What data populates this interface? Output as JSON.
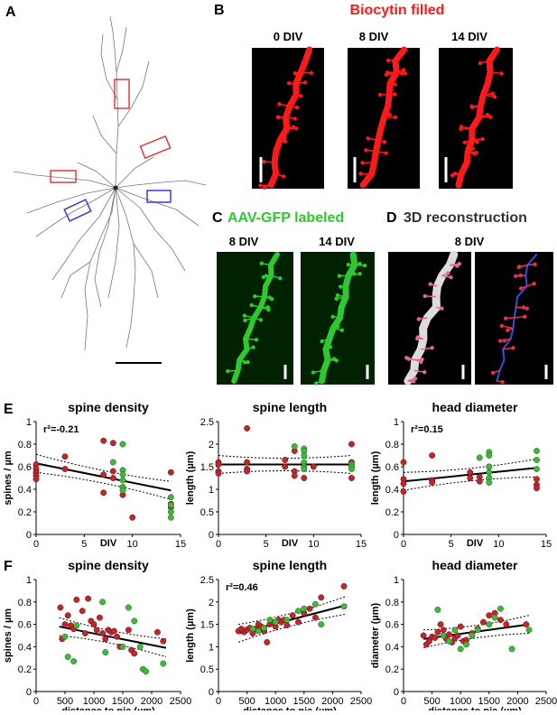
{
  "panels": {
    "A": {
      "letter": "A"
    },
    "B": {
      "letter": "B",
      "title": "Biocytin filled",
      "div_labels": [
        "0 DIV",
        "8 DIV",
        "14 DIV"
      ]
    },
    "C": {
      "letter": "C",
      "title": "AAV-GFP labeled",
      "div_labels": [
        "8 DIV",
        "14 DIV"
      ]
    },
    "D": {
      "letter": "D",
      "title": "3D reconstruction",
      "div_label": "8 DIV"
    },
    "E": {
      "letter": "E"
    },
    "F": {
      "letter": "F"
    }
  },
  "colors": {
    "red_data": "#c0272d",
    "green_data": "#3fb93c",
    "biocytin": "#ff1a1a",
    "gfp": "#2fc82f",
    "title_red": "#ff1a1a",
    "title_green": "#2fc82f"
  },
  "chart_data": [
    {
      "id": "E1",
      "type": "scatter",
      "title": "spine density",
      "xlabel": "DIV",
      "ylabel": "spines / µm",
      "annotation": "r²=-0.21",
      "xlim": [
        0,
        15
      ],
      "ylim": [
        0,
        1.0
      ],
      "xticks": [
        0,
        5,
        10,
        15
      ],
      "yticks": [
        0,
        0.2,
        0.4,
        0.6,
        0.8,
        1.0
      ],
      "fit": {
        "x": [
          0,
          14
        ],
        "y": [
          0.63,
          0.39
        ]
      },
      "red": [
        [
          0,
          0.62
        ],
        [
          0,
          0.58
        ],
        [
          0,
          0.55
        ],
        [
          0,
          0.52
        ],
        [
          0,
          0.49
        ],
        [
          3,
          0.69
        ],
        [
          3,
          0.58
        ],
        [
          7,
          0.83
        ],
        [
          7,
          0.53
        ],
        [
          7,
          0.37
        ],
        [
          8,
          0.81
        ],
        [
          8,
          0.56
        ],
        [
          8,
          0.5
        ],
        [
          9,
          0.35
        ],
        [
          10,
          0.15
        ],
        [
          14,
          0.55
        ],
        [
          14,
          0.27
        ],
        [
          14,
          0.24
        ]
      ],
      "green": [
        [
          8,
          0.64
        ],
        [
          9,
          0.8
        ],
        [
          9,
          0.57
        ],
        [
          9,
          0.53
        ],
        [
          9,
          0.48
        ],
        [
          9,
          0.42
        ],
        [
          9,
          0.39
        ],
        [
          14,
          0.33
        ],
        [
          14,
          0.26
        ],
        [
          14,
          0.2
        ],
        [
          14,
          0.15
        ]
      ]
    },
    {
      "id": "E2",
      "type": "scatter",
      "title": "spine length",
      "xlabel": "DIV",
      "ylabel": "length (µm)",
      "xlim": [
        0,
        15
      ],
      "ylim": [
        0,
        2.5
      ],
      "xticks": [
        0,
        5,
        10,
        15
      ],
      "yticks": [
        0,
        0.5,
        1.0,
        1.5,
        2.0,
        2.5
      ],
      "fit": {
        "x": [
          0,
          14
        ],
        "y": [
          1.55,
          1.55
        ]
      },
      "red": [
        [
          0,
          1.6
        ],
        [
          0,
          1.55
        ],
        [
          0,
          1.4
        ],
        [
          0,
          1.35
        ],
        [
          3,
          2.35
        ],
        [
          3,
          1.6
        ],
        [
          3,
          1.45
        ],
        [
          3,
          1.4
        ],
        [
          7,
          1.65
        ],
        [
          7,
          1.5
        ],
        [
          8,
          1.85
        ],
        [
          8,
          1.4
        ],
        [
          8,
          1.3
        ],
        [
          9,
          1.25
        ],
        [
          10,
          1.5
        ],
        [
          14,
          2.0
        ],
        [
          14,
          1.6
        ],
        [
          14,
          1.25
        ]
      ],
      "green": [
        [
          8,
          1.95
        ],
        [
          9,
          1.9
        ],
        [
          9,
          1.85
        ],
        [
          9,
          1.75
        ],
        [
          9,
          1.6
        ],
        [
          9,
          1.5
        ],
        [
          9,
          1.45
        ],
        [
          14,
          1.55
        ],
        [
          14,
          1.5
        ],
        [
          14,
          1.45
        ]
      ]
    },
    {
      "id": "E3",
      "type": "scatter",
      "title": "head diameter",
      "xlabel": "DIV",
      "ylabel": "length (µm)",
      "annotation": "r²=0.15",
      "xlim": [
        0,
        15
      ],
      "ylim": [
        0,
        1.0
      ],
      "xticks": [
        0,
        5,
        10,
        15
      ],
      "yticks": [
        0,
        0.2,
        0.4,
        0.6,
        0.8,
        1.0
      ],
      "fit": {
        "x": [
          0,
          14
        ],
        "y": [
          0.47,
          0.59
        ]
      },
      "red": [
        [
          0,
          0.64
        ],
        [
          0,
          0.49
        ],
        [
          0,
          0.45
        ],
        [
          0,
          0.38
        ],
        [
          3,
          0.7
        ],
        [
          3,
          0.48
        ],
        [
          3,
          0.46
        ],
        [
          7,
          0.55
        ],
        [
          7,
          0.5
        ],
        [
          8,
          0.51
        ],
        [
          8,
          0.47
        ],
        [
          9,
          0.6
        ],
        [
          14,
          0.49
        ],
        [
          14,
          0.44
        ],
        [
          14,
          0.41
        ]
      ],
      "green": [
        [
          8,
          0.68
        ],
        [
          9,
          0.73
        ],
        [
          9,
          0.7
        ],
        [
          9,
          0.6
        ],
        [
          9,
          0.55
        ],
        [
          9,
          0.5
        ],
        [
          9,
          0.46
        ],
        [
          14,
          0.74
        ],
        [
          14,
          0.66
        ],
        [
          14,
          0.58
        ]
      ]
    },
    {
      "id": "F1",
      "type": "scatter",
      "title": "spine density",
      "xlabel": "distance to pia (µm)",
      "ylabel": "spines / µm",
      "xlim": [
        0,
        2500
      ],
      "ylim": [
        0,
        1.0
      ],
      "xticks": [
        0,
        500,
        1000,
        1500,
        2000,
        2500
      ],
      "yticks": [
        0,
        0.2,
        0.4,
        0.6,
        0.8,
        1.0
      ],
      "fit": {
        "x": [
          400,
          2250
        ],
        "y": [
          0.58,
          0.39
        ]
      },
      "red": [
        [
          420,
          0.75
        ],
        [
          450,
          0.47
        ],
        [
          500,
          0.6
        ],
        [
          550,
          0.68
        ],
        [
          600,
          0.59
        ],
        [
          650,
          0.56
        ],
        [
          700,
          0.82
        ],
        [
          800,
          0.72
        ],
        [
          850,
          0.52
        ],
        [
          900,
          0.83
        ],
        [
          950,
          0.63
        ],
        [
          1000,
          0.6
        ],
        [
          1050,
          0.55
        ],
        [
          1100,
          0.66
        ],
        [
          1150,
          0.52
        ],
        [
          1200,
          0.47
        ],
        [
          1250,
          0.55
        ],
        [
          1300,
          0.53
        ],
        [
          1350,
          0.54
        ],
        [
          1400,
          0.49
        ],
        [
          1450,
          0.4
        ],
        [
          1600,
          0.55
        ],
        [
          1650,
          0.37
        ],
        [
          1700,
          0.34
        ],
        [
          2100,
          0.53
        ],
        [
          2200,
          0.45
        ]
      ],
      "green": [
        [
          500,
          0.49
        ],
        [
          550,
          0.31
        ],
        [
          650,
          0.27
        ],
        [
          700,
          0.59
        ],
        [
          1150,
          0.8
        ],
        [
          1200,
          0.35
        ],
        [
          1500,
          0.4
        ],
        [
          1600,
          0.75
        ],
        [
          1700,
          0.63
        ],
        [
          1800,
          0.4
        ],
        [
          1850,
          0.2
        ],
        [
          1900,
          0.18
        ],
        [
          2200,
          0.25
        ]
      ]
    },
    {
      "id": "F2",
      "type": "scatter",
      "title": "spine length",
      "xlabel": "distance to pia (µm)",
      "ylabel": "length (µm)",
      "annotation": "r²=0.46",
      "xlim": [
        0,
        2500
      ],
      "ylim": [
        0,
        2.5
      ],
      "xticks": [
        0,
        500,
        1000,
        1500,
        2000,
        2500
      ],
      "yticks": [
        0,
        0.5,
        1.0,
        1.5,
        2.0,
        2.5
      ],
      "fit": {
        "x": [
          350,
          2250
        ],
        "y": [
          1.3,
          1.93
        ]
      },
      "red": [
        [
          350,
          1.35
        ],
        [
          400,
          1.4
        ],
        [
          450,
          1.33
        ],
        [
          500,
          1.38
        ],
        [
          550,
          1.42
        ],
        [
          600,
          1.3
        ],
        [
          650,
          1.4
        ],
        [
          700,
          1.5
        ],
        [
          750,
          1.45
        ],
        [
          800,
          1.35
        ],
        [
          850,
          1.1
        ],
        [
          900,
          1.5
        ],
        [
          950,
          1.55
        ],
        [
          1000,
          1.45
        ],
        [
          1050,
          1.6
        ],
        [
          1100,
          1.55
        ],
        [
          1150,
          1.6
        ],
        [
          1200,
          1.48
        ],
        [
          1300,
          1.7
        ],
        [
          1400,
          1.55
        ],
        [
          1500,
          1.75
        ],
        [
          1600,
          1.85
        ],
        [
          1700,
          1.65
        ],
        [
          1800,
          2.1
        ],
        [
          2200,
          2.35
        ]
      ],
      "green": [
        [
          600,
          1.4
        ],
        [
          700,
          1.35
        ],
        [
          800,
          1.42
        ],
        [
          900,
          1.6
        ],
        [
          1000,
          1.55
        ],
        [
          1200,
          1.6
        ],
        [
          1400,
          1.8
        ],
        [
          1500,
          1.85
        ],
        [
          1700,
          1.95
        ],
        [
          1800,
          1.5
        ],
        [
          2200,
          1.9
        ]
      ]
    },
    {
      "id": "F3",
      "type": "scatter",
      "title": "head diameter",
      "xlabel": "distance to pia (µm)",
      "ylabel": "diameter (µm)",
      "xlim": [
        0,
        2500
      ],
      "ylim": [
        0,
        1.0
      ],
      "xticks": [
        0,
        500,
        1000,
        1500,
        2000,
        2500
      ],
      "yticks": [
        0,
        0.2,
        0.4,
        0.6,
        0.8,
        1.0
      ],
      "fit": {
        "x": [
          350,
          2200
        ],
        "y": [
          0.47,
          0.6
        ]
      },
      "red": [
        [
          350,
          0.5
        ],
        [
          400,
          0.42
        ],
        [
          450,
          0.45
        ],
        [
          500,
          0.49
        ],
        [
          550,
          0.48
        ],
        [
          600,
          0.53
        ],
        [
          650,
          0.6
        ],
        [
          700,
          0.55
        ],
        [
          750,
          0.47
        ],
        [
          800,
          0.51
        ],
        [
          850,
          0.44
        ],
        [
          900,
          0.48
        ],
        [
          950,
          0.5
        ],
        [
          1000,
          0.58
        ],
        [
          1050,
          0.45
        ],
        [
          1100,
          0.46
        ],
        [
          1200,
          0.52
        ],
        [
          1300,
          0.56
        ],
        [
          1400,
          0.62
        ],
        [
          1500,
          0.68
        ],
        [
          1600,
          0.7
        ],
        [
          1700,
          0.64
        ],
        [
          1800,
          0.6
        ],
        [
          2150,
          0.6
        ]
      ],
      "green": [
        [
          600,
          0.73
        ],
        [
          700,
          0.5
        ],
        [
          800,
          0.45
        ],
        [
          900,
          0.55
        ],
        [
          1000,
          0.38
        ],
        [
          1100,
          0.42
        ],
        [
          1200,
          0.5
        ],
        [
          1300,
          0.55
        ],
        [
          1500,
          0.6
        ],
        [
          1600,
          0.66
        ],
        [
          1700,
          0.74
        ],
        [
          1900,
          0.38
        ],
        [
          2200,
          0.55
        ]
      ]
    }
  ]
}
